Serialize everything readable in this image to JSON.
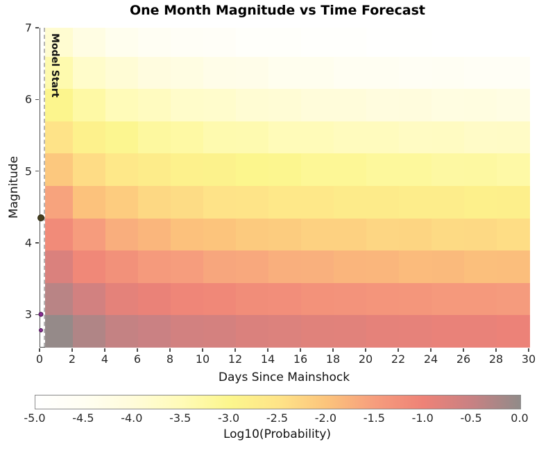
{
  "title": "One Month Magnitude vs Time Forecast",
  "chart_data": {
    "type": "heatmap",
    "title": "One Month Magnitude vs Time Forecast",
    "xlabel": "Days Since Mainshock",
    "ylabel": "Magnitude",
    "xlim": [
      0,
      30
    ],
    "ylim": [
      2.55,
      7
    ],
    "grid": "off",
    "x_ticks": [
      0,
      2,
      4,
      6,
      8,
      10,
      12,
      14,
      16,
      18,
      20,
      22,
      24,
      26,
      28,
      30
    ],
    "y_ticks": [
      3,
      4,
      5,
      6,
      7
    ],
    "day_edges": [
      0.3,
      2,
      4,
      6,
      8,
      10,
      12,
      14,
      16,
      18,
      20,
      22,
      24,
      26,
      28,
      30
    ],
    "magnitude_edges": [
      2.55,
      3.0,
      3.45,
      3.9,
      4.35,
      4.8,
      5.25,
      5.7,
      6.15,
      6.6,
      7.0
    ],
    "rows_bottom_to_top_log10_probability": [
      [
        -0.04,
        -0.28,
        -0.46,
        -0.52,
        -0.63,
        -0.66,
        -0.74,
        -0.76,
        -0.82,
        -0.83,
        -0.88,
        -0.89,
        -0.93,
        -0.93,
        -0.97
      ],
      [
        -0.36,
        -0.63,
        -0.87,
        -0.95,
        -1.08,
        -1.11,
        -1.2,
        -1.22,
        -1.29,
        -1.31,
        -1.36,
        -1.37,
        -1.42,
        -1.42,
        -1.46
      ],
      [
        -0.74,
        -1.12,
        -1.28,
        -1.45,
        -1.5,
        -1.62,
        -1.64,
        -1.73,
        -1.74,
        -1.81,
        -1.82,
        -1.88,
        -1.87,
        -1.93,
        -1.92
      ],
      [
        -1.16,
        -1.48,
        -1.72,
        -1.82,
        -1.96,
        -2.0,
        -2.1,
        -2.12,
        -2.2,
        -2.21,
        -2.28,
        -2.27,
        -2.34,
        -2.33,
        -2.39
      ],
      [
        -1.58,
        -1.97,
        -2.13,
        -2.31,
        -2.37,
        -2.49,
        -2.51,
        -2.61,
        -2.61,
        -2.69,
        -2.69,
        -2.76,
        -2.75,
        -2.82,
        -2.8
      ],
      [
        -2.07,
        -2.38,
        -2.62,
        -2.72,
        -2.86,
        -2.9,
        -3.0,
        -3.02,
        -3.1,
        -3.1,
        -3.18,
        -3.17,
        -3.24,
        -3.23,
        -3.29
      ],
      [
        -2.48,
        -2.87,
        -3.03,
        -3.21,
        -3.27,
        -3.39,
        -3.41,
        -3.51,
        -3.51,
        -3.59,
        -3.59,
        -3.66,
        -3.65,
        -3.72,
        -3.7
      ],
      [
        -2.97,
        -3.28,
        -3.52,
        -3.62,
        -3.76,
        -3.8,
        -3.9,
        -3.92,
        -4.0,
        -4.0,
        -4.08,
        -4.07,
        -4.14,
        -4.13,
        -4.19
      ],
      [
        -3.38,
        -3.77,
        -3.93,
        -4.11,
        -4.17,
        -4.29,
        -4.31,
        -4.41,
        -4.41,
        -4.49,
        -4.49,
        -4.56,
        -4.55,
        -4.62,
        -4.6
      ],
      [
        -3.87,
        -4.18,
        -4.42,
        -4.52,
        -4.66,
        -4.7,
        -4.8,
        -4.82,
        -4.9,
        -4.9,
        -4.98,
        -4.97,
        -5.0,
        -5.0,
        -5.0
      ]
    ],
    "model_start": {
      "label": "Model Start",
      "day": 0.2
    },
    "observed_events": [
      {
        "day": 0,
        "magnitude": 4.35,
        "diameter": 8,
        "color": "#453f1f",
        "edge_color": "#2a260f"
      },
      {
        "day": 0,
        "magnitude": 3.0,
        "diameter": 5,
        "color": "#8a2f93",
        "edge_color": "#43104d"
      },
      {
        "day": 0,
        "magnitude": 2.78,
        "diameter": 4,
        "color": "#8a2f93",
        "edge_color": "#43104d"
      }
    ],
    "colorbar": {
      "label": "Log10(Probability)",
      "min": -5.0,
      "max": 0.0,
      "ticks": [
        -5.0,
        -4.5,
        -4.0,
        -3.5,
        -3.0,
        -2.5,
        -2.0,
        -1.5,
        -1.0,
        -0.5,
        0.0
      ],
      "tick_labels": [
        "-5.0",
        "-4.5",
        "-4.0",
        "-3.5",
        "-3.0",
        "-2.5",
        "-2.0",
        "-1.5",
        "-1.0",
        "-0.5",
        "0.0"
      ],
      "stops": [
        {
          "value": -5.0,
          "color": "#ffffff"
        },
        {
          "value": -4.5,
          "color": "#fffef2"
        },
        {
          "value": -4.0,
          "color": "#fffcda"
        },
        {
          "value": -3.5,
          "color": "#fffbb8"
        },
        {
          "value": -3.0,
          "color": "#fcf68d"
        },
        {
          "value": -2.5,
          "color": "#fee488"
        },
        {
          "value": -2.0,
          "color": "#fcc47c"
        },
        {
          "value": -1.5,
          "color": "#f69d7d"
        },
        {
          "value": -1.0,
          "color": "#ee8277"
        },
        {
          "value": -0.5,
          "color": "#c88183"
        },
        {
          "value": 0.0,
          "color": "#918b89"
        }
      ]
    }
  }
}
